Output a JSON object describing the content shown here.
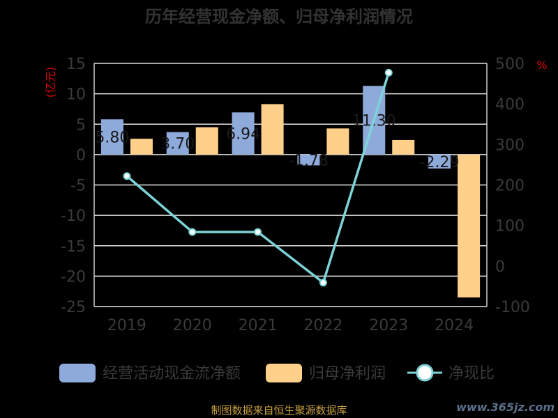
{
  "chart_data": {
    "type": "bar",
    "title": "历年经营现金净额、归母净利润情况",
    "categories": [
      "2019",
      "2020",
      "2021",
      "2022",
      "2023",
      "2024"
    ],
    "y_unit": "(亿元)",
    "y2_unit": "%",
    "ylim": [
      -25,
      15
    ],
    "yticks": [
      15,
      10,
      5,
      0,
      -5,
      -10,
      -15,
      -20,
      -25
    ],
    "y2lim": [
      -100,
      500
    ],
    "y2ticks": [
      500,
      400,
      300,
      200,
      100,
      0,
      -100
    ],
    "grid": true,
    "legend_position": "bottom",
    "series": [
      {
        "name": "经营活动现金流净额",
        "kind": "bar",
        "axis": "left",
        "color": "#8eaadb",
        "values": [
          5.8,
          3.7,
          6.94,
          -1.78,
          11.3,
          -2.29
        ],
        "labels": [
          "5.80",
          "3.70",
          "6.94",
          "-1.78",
          "11.30",
          "-2.29"
        ]
      },
      {
        "name": "归母净利润",
        "kind": "bar",
        "axis": "left",
        "color": "#ffd08a",
        "values": [
          2.6,
          4.5,
          8.3,
          4.3,
          2.4,
          -23.5
        ]
      },
      {
        "name": "净现比",
        "kind": "line",
        "axis": "right",
        "color": "#7ed3d8",
        "values": [
          222,
          84,
          84,
          -41,
          477,
          null
        ]
      }
    ]
  },
  "footer": "制图数据来自恒生聚源数据库",
  "watermark": "www.365jz.com"
}
